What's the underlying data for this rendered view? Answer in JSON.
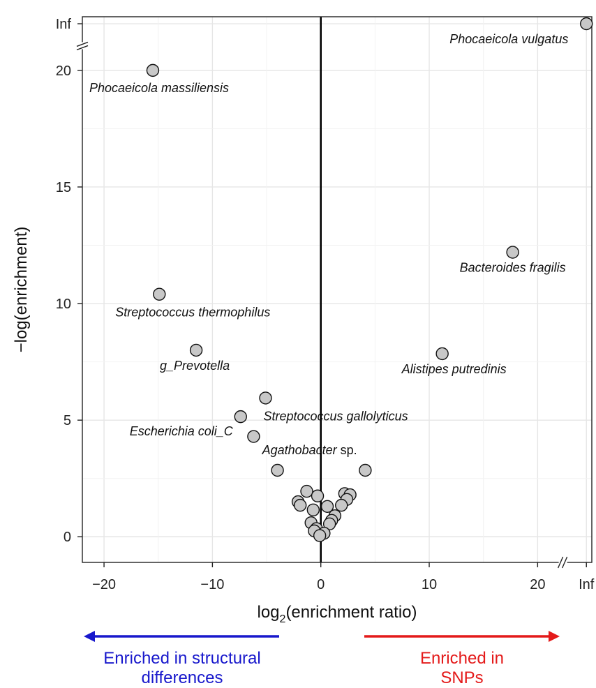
{
  "chart_data": {
    "type": "scatter",
    "xlabel_main": "log",
    "xlabel_sub": "2",
    "xlabel_rest": "(enrichment ratio)",
    "ylabel": "−log(enrichment)",
    "xlim": [
      -22,
      25
    ],
    "ylim": [
      -1.1,
      22.3
    ],
    "x_ticks": [
      {
        "value": -20,
        "label": "−20"
      },
      {
        "value": -10,
        "label": "−10"
      },
      {
        "value": 0,
        "label": "0"
      },
      {
        "value": 10,
        "label": "10"
      },
      {
        "value": 20,
        "label": "20"
      },
      {
        "value": 24.5,
        "label": "Inf"
      }
    ],
    "y_ticks": [
      {
        "value": 0,
        "label": "0"
      },
      {
        "value": 5,
        "label": "5"
      },
      {
        "value": 10,
        "label": "10"
      },
      {
        "value": 15,
        "label": "15"
      },
      {
        "value": 20,
        "label": "20"
      },
      {
        "value": 22,
        "label": "Inf"
      }
    ],
    "points": [
      {
        "x": 24.5,
        "y": 22.0,
        "label": "Phocaeicola vulgatus"
      },
      {
        "x": -15.5,
        "y": 20.0,
        "label": "Phocaeicola massiliensis"
      },
      {
        "x": 17.7,
        "y": 12.2,
        "label": "Bacteroides fragilis"
      },
      {
        "x": -14.9,
        "y": 10.4,
        "label": "Streptococcus thermophilus"
      },
      {
        "x": -11.5,
        "y": 8.0,
        "label": "g_Prevotella"
      },
      {
        "x": 11.2,
        "y": 7.85,
        "label": "Alistipes putredinis"
      },
      {
        "x": -5.1,
        "y": 5.95,
        "label": "Streptococcus gallolyticus"
      },
      {
        "x": -7.4,
        "y": 5.15,
        "label": "Escherichia coli_C"
      },
      {
        "x": -6.2,
        "y": 4.3,
        "label": ""
      },
      {
        "x": -4.0,
        "y": 2.85,
        "label": "Agathobacter sp."
      },
      {
        "x": 4.1,
        "y": 2.85,
        "label": ""
      },
      {
        "x": -1.3,
        "y": 1.95,
        "label": ""
      },
      {
        "x": -0.3,
        "y": 1.75,
        "label": ""
      },
      {
        "x": -2.1,
        "y": 1.5,
        "label": ""
      },
      {
        "x": -1.9,
        "y": 1.35,
        "label": ""
      },
      {
        "x": -0.7,
        "y": 1.15,
        "label": ""
      },
      {
        "x": 0.6,
        "y": 1.3,
        "label": ""
      },
      {
        "x": 2.2,
        "y": 1.85,
        "label": ""
      },
      {
        "x": 2.7,
        "y": 1.8,
        "label": ""
      },
      {
        "x": 2.4,
        "y": 1.6,
        "label": ""
      },
      {
        "x": 1.9,
        "y": 1.35,
        "label": ""
      },
      {
        "x": 1.3,
        "y": 0.9,
        "label": ""
      },
      {
        "x": 1.0,
        "y": 0.7,
        "label": ""
      },
      {
        "x": 0.8,
        "y": 0.55,
        "label": ""
      },
      {
        "x": -0.9,
        "y": 0.6,
        "label": ""
      },
      {
        "x": -0.4,
        "y": 0.35,
        "label": ""
      },
      {
        "x": -0.6,
        "y": 0.25,
        "label": ""
      },
      {
        "x": 0.3,
        "y": 0.15,
        "label": ""
      },
      {
        "x": -0.1,
        "y": 0.05,
        "label": ""
      }
    ],
    "axis_breaks": [
      "y-between-20-and-Inf",
      "x-between-20-and-Inf"
    ],
    "vertical_line_at": 0,
    "marker_color": "#c8c8c8",
    "grid": true
  },
  "legend": {
    "left_text_line1": "Enriched in structural",
    "left_text_line2": "differences",
    "left_color": "#1818cc",
    "right_text_line1": "Enriched in",
    "right_text_line2": "SNPs",
    "right_color": "#e41a1a"
  }
}
